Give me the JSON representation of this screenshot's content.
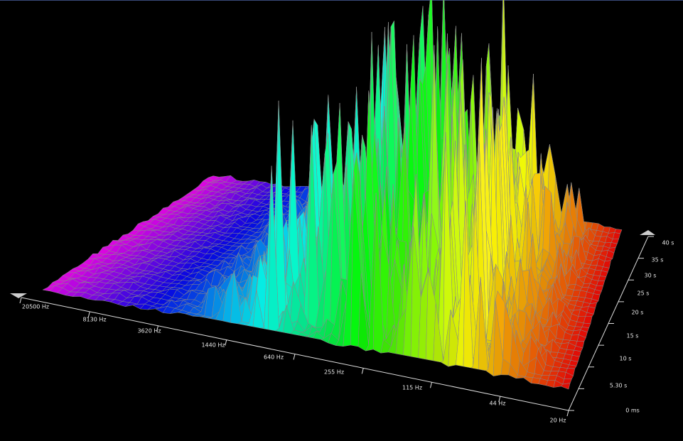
{
  "frequency_axis": {
    "labels": [
      "20500 Hz",
      "8130 Hz",
      "3620 Hz",
      "1440 Hz",
      "640 Hz",
      "255 Hz",
      "115 Hz",
      "44 Hz",
      "20 Hz"
    ]
  },
  "time_axis": {
    "labels": [
      "0 ms",
      "5.30 s",
      "10 s",
      "15 s",
      "20 s",
      "25 s",
      "30 s",
      "35 s",
      "40 s"
    ]
  }
}
